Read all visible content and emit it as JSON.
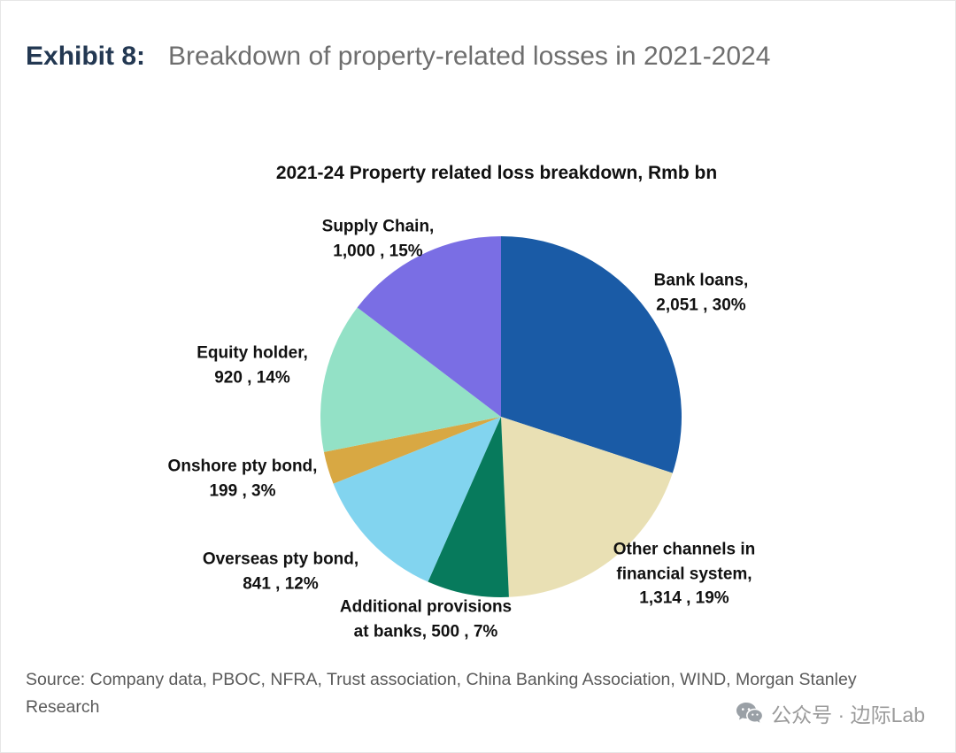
{
  "exhibit": {
    "label": "Exhibit 8:",
    "title": "Breakdown of property-related losses in 2021-2024"
  },
  "chart_data": {
    "type": "pie",
    "title": "2021-24 Property related loss breakdown, Rmb bn",
    "unit": "Rmb bn",
    "start_angle_deg": 0,
    "direction": "clockwise",
    "legend": "none",
    "slices": [
      {
        "name": "Bank loans",
        "value": 2051,
        "pct": 30,
        "color": "#1a5ba6",
        "label_lines": [
          "Bank loans,",
          "2,051 , 30%"
        ]
      },
      {
        "name": "Other channels in financial system",
        "value": 1314,
        "pct": 19,
        "color": "#e9e0b4",
        "label_lines": [
          "Other channels in",
          "financial system,",
          "1,314 , 19%"
        ]
      },
      {
        "name": "Additional provisions at banks",
        "value": 500,
        "pct": 7,
        "color": "#077a5c",
        "label_lines": [
          "Additional provisions",
          "at banks,  500 , 7%"
        ]
      },
      {
        "name": "Overseas pty bond",
        "value": 841,
        "pct": 12,
        "color": "#82d4ef",
        "label_lines": [
          "Overseas pty bond,",
          "841 , 12%"
        ]
      },
      {
        "name": "Onshore pty bond",
        "value": 199,
        "pct": 3,
        "color": "#d8a843",
        "label_lines": [
          "Onshore pty bond,",
          "199 , 3%"
        ]
      },
      {
        "name": "Equity holder",
        "value": 920,
        "pct": 14,
        "color": "#93e1c6",
        "label_lines": [
          "Equity holder,",
          "920 , 14%"
        ]
      },
      {
        "name": "Supply Chain",
        "value": 1000,
        "pct": 15,
        "color": "#7a6ee4",
        "label_lines": [
          "Supply Chain,",
          "1,000 , 15%"
        ]
      }
    ]
  },
  "source": "Source: Company data, PBOC, NFRA, Trust association, China Banking Association, WIND, Morgan Stanley Research",
  "watermark": {
    "icon": "wechat-icon",
    "text": "公众号 · 边际Lab"
  }
}
